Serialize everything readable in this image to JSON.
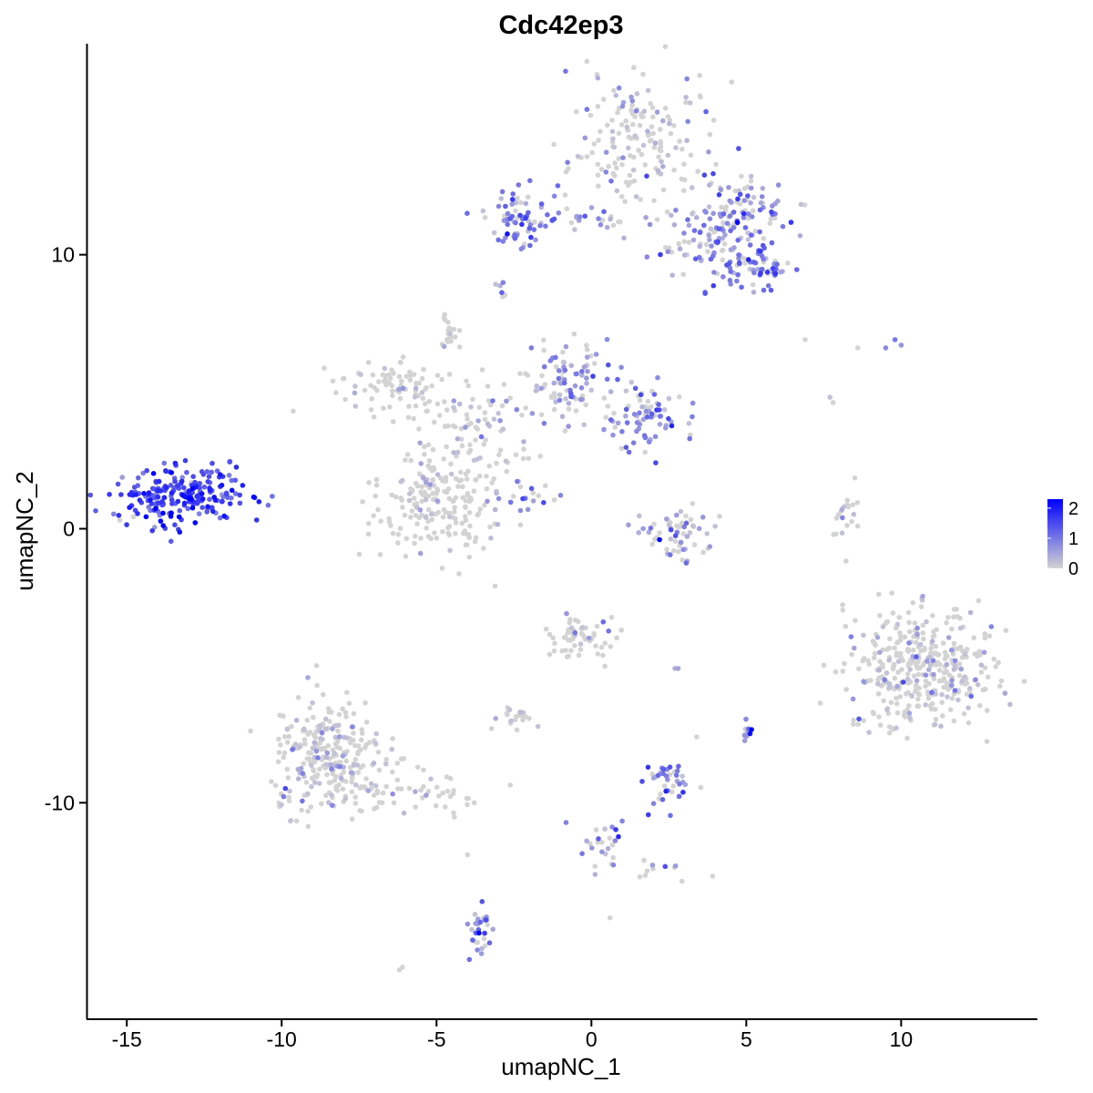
{
  "chart_data": {
    "type": "scatter",
    "title": "Cdc42ep3",
    "xlabel": "umapNC_1",
    "ylabel": "umapNC_2",
    "xlim": [
      -16.3,
      14.4
    ],
    "ylim": [
      -17.9,
      17.7
    ],
    "x_ticks": [
      -15,
      -10,
      -5,
      0,
      5,
      10
    ],
    "x_tick_labels": [
      "-15",
      "-10",
      "-5",
      "0",
      "5",
      "10"
    ],
    "y_ticks": [
      -10,
      0,
      10
    ],
    "y_tick_labels": [
      "-10",
      "0",
      "10"
    ],
    "grid": false,
    "legend": {
      "position": "right",
      "type": "colorbar",
      "ticks": [
        0,
        1,
        2
      ],
      "tick_labels": [
        "0",
        "1",
        "2"
      ],
      "range": [
        0,
        2.3
      ],
      "color_low": "#d3d3d3",
      "color_high": "#0000ff"
    },
    "clusters": [
      {
        "region": "top-upper-lobe",
        "center": [
          1.7,
          14.0
        ],
        "spread": [
          1.2,
          1.2
        ],
        "n": 170,
        "mean_expression": 0.35
      },
      {
        "region": "top-right-arm",
        "center": [
          4.6,
          11.3
        ],
        "spread": [
          0.9,
          0.8
        ],
        "n": 140,
        "mean_expression": 0.75
      },
      {
        "region": "top-right-tip",
        "center": [
          5.2,
          9.6
        ],
        "spread": [
          0.6,
          0.4
        ],
        "n": 60,
        "mean_expression": 1.0
      },
      {
        "region": "top-left-arm",
        "center": [
          -2.3,
          11.3
        ],
        "spread": [
          0.6,
          0.6
        ],
        "n": 70,
        "mean_expression": 0.9
      },
      {
        "region": "top-bridge",
        "center": [
          -0.2,
          11.2
        ],
        "spread": [
          0.9,
          0.2
        ],
        "n": 25,
        "mean_expression": 0.8
      },
      {
        "region": "top-lower-bridge",
        "center": [
          3.0,
          10.1
        ],
        "spread": [
          1.2,
          0.3
        ],
        "n": 25,
        "mean_expression": 0.6
      },
      {
        "region": "small-isolated-top",
        "center": [
          -2.9,
          8.6
        ],
        "spread": [
          0.1,
          0.2
        ],
        "n": 6,
        "mean_expression": 1.0
      },
      {
        "region": "center-left-arm",
        "center": [
          -6.4,
          5.2
        ],
        "spread": [
          1.0,
          0.5
        ],
        "n": 80,
        "mean_expression": 0.05
      },
      {
        "region": "center-hub",
        "center": [
          -3.8,
          3.6
        ],
        "spread": [
          1.0,
          1.0
        ],
        "n": 90,
        "mean_expression": 0.3
      },
      {
        "region": "center-upper-spike",
        "center": [
          -4.6,
          7.1
        ],
        "spread": [
          0.2,
          0.4
        ],
        "n": 20,
        "mean_expression": 0.1
      },
      {
        "region": "center-lower-blob",
        "center": [
          -5.0,
          0.9
        ],
        "spread": [
          1.1,
          0.9
        ],
        "n": 190,
        "mean_expression": 0.05
      },
      {
        "region": "center-right-arm",
        "center": [
          -0.8,
          5.3
        ],
        "spread": [
          0.8,
          0.7
        ],
        "n": 90,
        "mean_expression": 0.7
      },
      {
        "region": "center-right-tip",
        "center": [
          1.7,
          4.0
        ],
        "spread": [
          0.7,
          0.6
        ],
        "n": 80,
        "mean_expression": 0.85
      },
      {
        "region": "center-diagonal-strand",
        "center": [
          -2.2,
          1.3
        ],
        "spread": [
          0.6,
          0.3
        ],
        "n": 20,
        "mean_expression": 0.6
      },
      {
        "region": "far-left-cluster",
        "center": [
          -13.2,
          1.2
        ],
        "spread": [
          1.1,
          0.5
        ],
        "n": 230,
        "mean_expression": 1.55
      },
      {
        "region": "center-small-cluster",
        "center": [
          3.0,
          -0.3
        ],
        "spread": [
          0.6,
          0.5
        ],
        "n": 60,
        "mean_expression": 0.6
      },
      {
        "region": "right-thin-strand",
        "center": [
          8.1,
          0.4
        ],
        "spread": [
          0.2,
          0.5
        ],
        "n": 20,
        "mean_expression": 0.05
      },
      {
        "region": "right-large-blob",
        "center": [
          10.6,
          -5.1
        ],
        "spread": [
          1.2,
          1.1
        ],
        "n": 380,
        "mean_expression": 0.2
      },
      {
        "region": "lower-left-blob",
        "center": [
          -8.5,
          -8.3
        ],
        "spread": [
          0.9,
          1.0
        ],
        "n": 280,
        "mean_expression": 0.3
      },
      {
        "region": "lower-left-tail",
        "center": [
          -5.6,
          -9.6
        ],
        "spread": [
          1.0,
          0.4
        ],
        "n": 45,
        "mean_expression": 0.1
      },
      {
        "region": "lower-center-upper",
        "center": [
          -0.3,
          -3.9
        ],
        "spread": [
          0.5,
          0.4
        ],
        "n": 60,
        "mean_expression": 0.15
      },
      {
        "region": "lower-center-mid",
        "center": [
          -2.5,
          -6.9
        ],
        "spread": [
          0.3,
          0.2
        ],
        "n": 20,
        "mean_expression": 0.2
      },
      {
        "region": "lower-center-right",
        "center": [
          2.6,
          -9.3
        ],
        "spread": [
          0.4,
          0.4
        ],
        "n": 40,
        "mean_expression": 1.0
      },
      {
        "region": "lower-small-right",
        "center": [
          5.0,
          -7.4
        ],
        "spread": [
          0.1,
          0.2
        ],
        "n": 10,
        "mean_expression": 1.0
      },
      {
        "region": "lower-strand",
        "center": [
          0.2,
          -11.6
        ],
        "spread": [
          0.4,
          0.6
        ],
        "n": 25,
        "mean_expression": 0.7
      },
      {
        "region": "lower-strand-right",
        "center": [
          2.2,
          -12.5
        ],
        "spread": [
          0.4,
          0.2
        ],
        "n": 12,
        "mean_expression": 0.6
      },
      {
        "region": "bottom-small-cluster",
        "center": [
          -3.5,
          -14.8
        ],
        "spread": [
          0.2,
          0.5
        ],
        "n": 30,
        "mean_expression": 1.0
      }
    ],
    "isolated_points": [
      {
        "x": 6.9,
        "y": 6.9,
        "value": 0
      },
      {
        "x": 8.6,
        "y": 6.6,
        "value": 0
      },
      {
        "x": 9.5,
        "y": 6.6,
        "value": 0.8
      },
      {
        "x": 9.8,
        "y": 6.9,
        "value": 1.0
      },
      {
        "x": 10.0,
        "y": 6.7,
        "value": 0.7
      },
      {
        "x": 7.7,
        "y": 4.8,
        "value": 0.2
      },
      {
        "x": 7.8,
        "y": 4.6,
        "value": 0
      },
      {
        "x": 2.2,
        "y": -0.4,
        "value": 2.3
      },
      {
        "x": 2.8,
        "y": -5.1,
        "value": 0.5
      },
      {
        "x": 2.7,
        "y": -5.1,
        "value": 0.4
      },
      {
        "x": -4.0,
        "y": -11.9,
        "value": 0
      },
      {
        "x": 0.6,
        "y": -14.2,
        "value": 0
      },
      {
        "x": -6.2,
        "y": -16.1,
        "value": 0
      },
      {
        "x": -6.1,
        "y": -16.0,
        "value": 0
      },
      {
        "x": 3.4,
        "y": -7.6,
        "value": 0
      }
    ]
  }
}
